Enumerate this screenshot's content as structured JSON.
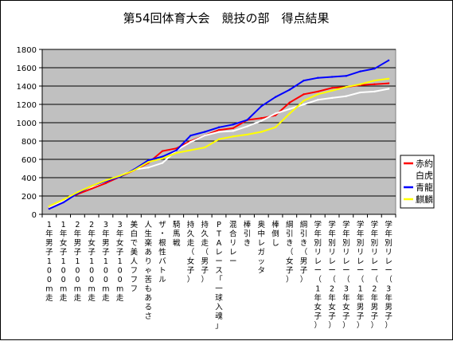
{
  "chart_data": {
    "type": "line",
    "title": "第54回体育大会　競技の部　得点結果",
    "xlabel": "",
    "ylabel": "",
    "ylim": [
      0,
      1800
    ],
    "yticks": [
      0,
      200,
      400,
      600,
      800,
      1000,
      1200,
      1400,
      1600,
      1800
    ],
    "grid": true,
    "legend_position": "right",
    "plot_background": "#c0c0c0",
    "categories": [
      "1年男子100m走",
      "1年女子100m走",
      "2年男子100m走",
      "2年女子100m走",
      "3年男子100m走",
      "3年女子100m走",
      "美白で美人フフフ",
      "人生楽ありゃ苦もあるさ",
      "ザ・根性バトル",
      "騎馬戦",
      "持久走（女子）",
      "持久走（男子）",
      "PTAレース「一球入魂」",
      "混合リレー",
      "棒引き",
      "奥中レガッタ",
      "棒倒し",
      "綱引き（女子）",
      "綱引き（男子）",
      "学年別リレー（1年女子）",
      "学年別リレー（2年女子）",
      "学年別リレー（3年女子）",
      "学年別リレー（1年男子）",
      "学年別リレー（2年男子）",
      "学年別リレー（3年男子）"
    ],
    "series": [
      {
        "name": "赤約",
        "color": "#ff0000",
        "values": [
          70,
          150,
          220,
          280,
          340,
          410,
          480,
          560,
          690,
          720,
          800,
          860,
          920,
          940,
          1030,
          1050,
          1080,
          1220,
          1310,
          1340,
          1380,
          1390,
          1410,
          1420,
          1430
        ]
      },
      {
        "name": "白虎",
        "color": "#ffffff",
        "values": [
          80,
          150,
          240,
          300,
          360,
          420,
          490,
          510,
          560,
          700,
          790,
          860,
          900,
          910,
          960,
          1020,
          1100,
          1150,
          1200,
          1250,
          1270,
          1290,
          1330,
          1340,
          1370
        ]
      },
      {
        "name": "青龍",
        "color": "#0000ff",
        "values": [
          60,
          130,
          230,
          310,
          360,
          410,
          490,
          590,
          630,
          700,
          860,
          900,
          950,
          980,
          1030,
          1180,
          1280,
          1360,
          1460,
          1490,
          1500,
          1510,
          1560,
          1590,
          1680
        ]
      },
      {
        "name": "麒麟",
        "color": "#ffff00",
        "values": [
          90,
          160,
          240,
          310,
          370,
          420,
          480,
          570,
          610,
          670,
          700,
          730,
          820,
          850,
          870,
          900,
          950,
          1100,
          1240,
          1310,
          1350,
          1390,
          1420,
          1460,
          1480
        ]
      }
    ]
  }
}
